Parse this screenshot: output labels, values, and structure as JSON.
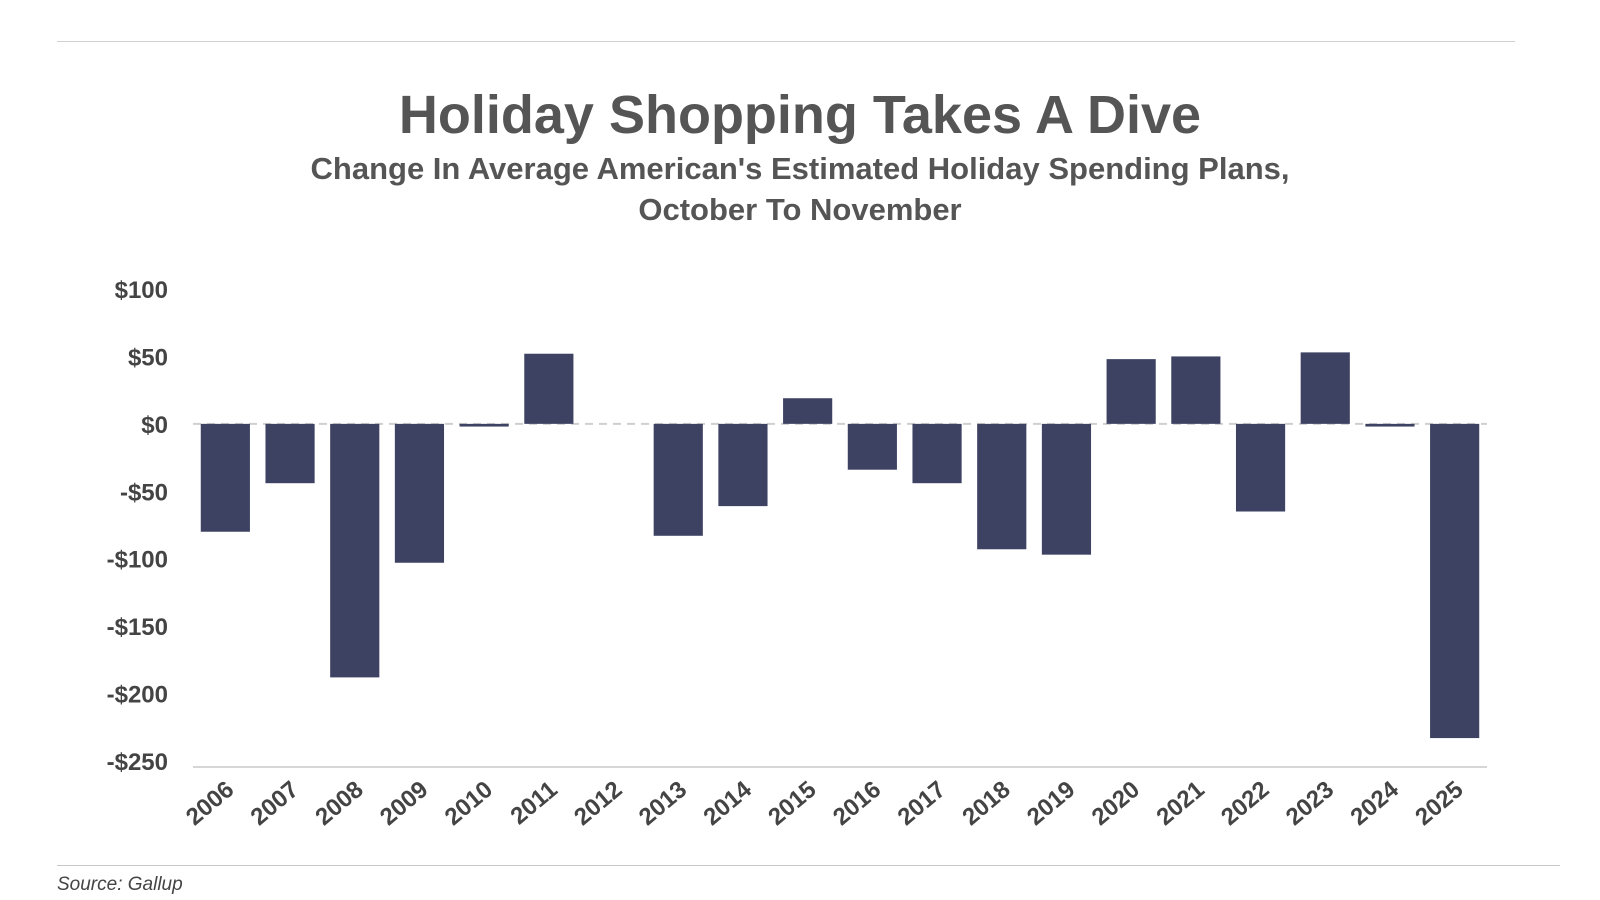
{
  "title": "Holiday Shopping Takes A Dive",
  "subtitle_line1": "Change In Average American's Estimated Holiday Spending Plans,",
  "subtitle_line2": "October To November",
  "source": "Source: Gallup",
  "colors": {
    "bar": "#3d4263",
    "zero_line": "#cfcfcf",
    "axis": "#d6d6d6",
    "text": "#555555"
  },
  "chart_data": {
    "type": "bar",
    "title": "Holiday Shopping Takes A Dive",
    "subtitle": "Change In Average American's Estimated Holiday Spending Plans, October To November",
    "categories": [
      "2006",
      "2007",
      "2008",
      "2009",
      "2010",
      "2011",
      "2012",
      "2013",
      "2014",
      "2015",
      "2016",
      "2017",
      "2018",
      "2019",
      "2020",
      "2021",
      "2022",
      "2023",
      "2024",
      "2025"
    ],
    "values": [
      -80,
      -44,
      -188,
      -103,
      -2,
      52,
      0,
      -83,
      -61,
      19,
      -34,
      -44,
      -93,
      -97,
      48,
      50,
      -65,
      53,
      -2,
      -233
    ],
    "ylim": [
      -250,
      100
    ],
    "yticks": [
      100,
      50,
      0,
      -50,
      -100,
      -150,
      -200,
      -250
    ],
    "ytick_labels": [
      "$100",
      "$50",
      "$0",
      "-$50",
      "-$100",
      "-$150",
      "-$200",
      "-$250"
    ],
    "xlabel": "",
    "ylabel": "",
    "grid": false,
    "zero_line": "dashed",
    "legend": "none"
  }
}
